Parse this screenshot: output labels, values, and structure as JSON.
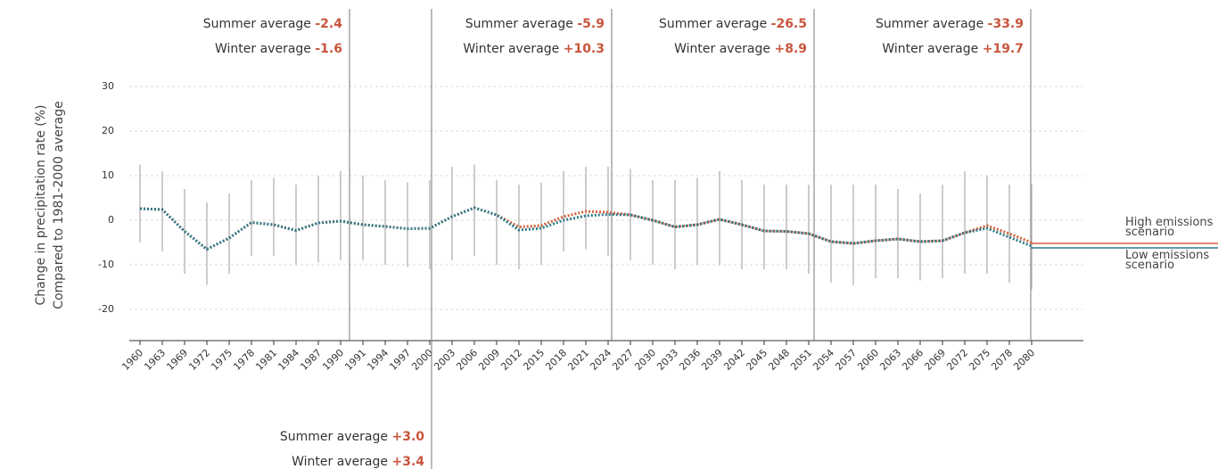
{
  "chart_data": {
    "type": "line",
    "y_label_lines": [
      "Change in precipitation rate (%)",
      "Compared to 1981-2000 average"
    ],
    "categories": [
      "1960",
      "1963",
      "1969",
      "1972",
      "1975",
      "1978",
      "1981",
      "1984",
      "1987",
      "1990",
      "1991",
      "1994",
      "1997",
      "2000",
      "2003",
      "2006",
      "2009",
      "2012",
      "2015",
      "2018",
      "2021",
      "2024",
      "2027",
      "2030",
      "2033",
      "2036",
      "2039",
      "2042",
      "2045",
      "2048",
      "2051",
      "2054",
      "2057",
      "2060",
      "2063",
      "2066",
      "2069",
      "2072",
      "2075",
      "2078",
      "2080"
    ],
    "series": [
      {
        "name": "High emissions scenario",
        "color": "#d4623a",
        "values": [
          2.6,
          2.4,
          -2.5,
          -6.5,
          -4.0,
          -0.5,
          -1.0,
          -2.3,
          -0.6,
          -0.2,
          -1.0,
          -1.4,
          -1.9,
          -1.8,
          0.8,
          2.8,
          1.2,
          -1.5,
          -1.2,
          0.8,
          2.0,
          1.8,
          1.2,
          0.0,
          -1.5,
          -1.0,
          0.2,
          -1.0,
          -2.4,
          -2.5,
          -3.0,
          -4.8,
          -5.2,
          -4.6,
          -4.2,
          -4.8,
          -4.6,
          -2.8,
          -1.2,
          -3.0,
          -5.0
        ]
      },
      {
        "name": "Low emissions scenario",
        "color": "#2e7a8a",
        "values": [
          2.6,
          2.4,
          -2.5,
          -6.5,
          -4.0,
          -0.5,
          -1.0,
          -2.3,
          -0.6,
          -0.2,
          -1.0,
          -1.4,
          -1.9,
          -1.8,
          0.8,
          2.8,
          1.2,
          -2.2,
          -1.8,
          0.0,
          1.0,
          1.3,
          1.2,
          0.0,
          -1.5,
          -1.0,
          0.2,
          -1.0,
          -2.4,
          -2.5,
          -3.0,
          -4.8,
          -5.2,
          -4.6,
          -4.2,
          -4.8,
          -4.6,
          -2.8,
          -1.8,
          -3.8,
          -5.8
        ]
      }
    ],
    "range_high": [
      12.5,
      11,
      7,
      4,
      6,
      9,
      9.5,
      8,
      10,
      11,
      10,
      9,
      8.5,
      9,
      12,
      12.5,
      9,
      8,
      8.5,
      11,
      12,
      12,
      11.5,
      9,
      9,
      9.5,
      11,
      9,
      8,
      8,
      8,
      8,
      8,
      8,
      7,
      6,
      8,
      11,
      10,
      8,
      8
    ],
    "range_low": [
      -5,
      -7,
      -12,
      -14.5,
      -12,
      -8,
      -8,
      -10,
      -9.5,
      -9,
      -9,
      -10,
      -10.5,
      -11,
      -9,
      -8,
      -10,
      -11,
      -10,
      -7,
      -6.5,
      -8,
      -9,
      -10,
      -11,
      -10,
      -10,
      -11,
      -11,
      -11,
      -12,
      -14,
      -14.5,
      -13,
      -13,
      -13.5,
      -13,
      -12,
      -12,
      -14,
      -15.5
    ],
    "ylim": [
      -27,
      31
    ],
    "yticks": [
      -20,
      -10,
      0,
      10,
      20,
      30
    ],
    "grid": true,
    "annotations": [
      {
        "summer": {
          "label": "Summer average",
          "value": -2.4
        },
        "winter": {
          "label": "Winter average",
          "value": -1.6
        }
      },
      {
        "summer": {
          "label": "Summer average",
          "value": 3.0,
          "value_label": "+3.0"
        },
        "winter": {
          "label": "Winter average",
          "value": 3.4,
          "value_label": "+3.4"
        }
      },
      {
        "summer": {
          "label": "Summer average",
          "value": -5.9
        },
        "winter": {
          "label": "Winter average",
          "value": 10.3,
          "value_label": "+10.3"
        }
      },
      {
        "summer": {
          "label": "Summer average",
          "value": -26.5
        },
        "winter": {
          "label": "Winter average",
          "value": 8.9,
          "value_label": "+8.9"
        }
      },
      {
        "summer": {
          "label": "Summer average",
          "value": -33.9
        },
        "winter": {
          "label": "Winter average",
          "value": 19.7,
          "value_label": "+19.7"
        }
      }
    ]
  }
}
